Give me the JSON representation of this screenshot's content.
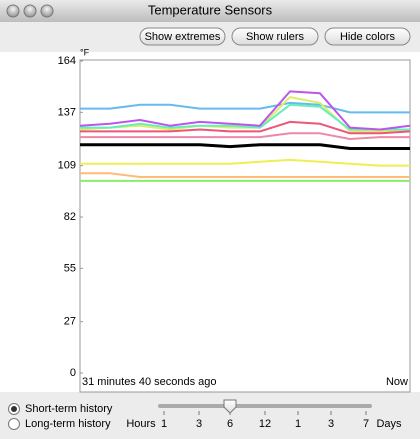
{
  "window_title": "Temperature Sensors",
  "buttons": [
    "Show extremes",
    "Show rulers",
    "Hide colors"
  ],
  "chart_data": {
    "type": "line",
    "y_label": "°F",
    "ylim": [
      0,
      164
    ],
    "yticks": [
      0,
      27,
      55,
      82,
      109,
      137,
      164
    ],
    "categories": [
      "31 minutes 40 seconds ago",
      null,
      null,
      null,
      null,
      null,
      null,
      null,
      null,
      null,
      null,
      "Now"
    ],
    "series": [
      {
        "color": "#66bbee",
        "values": [
          139,
          139,
          141,
          141,
          139,
          139,
          139,
          142,
          141,
          137,
          137,
          137
        ]
      },
      {
        "color": "#ddee66",
        "values": [
          128,
          129,
          130,
          128,
          130,
          129,
          129,
          145,
          142,
          127,
          127,
          127
        ]
      },
      {
        "color": "#66eebb",
        "values": [
          129,
          129,
          131,
          129,
          130,
          130,
          129,
          141,
          140,
          128,
          128,
          128
        ]
      },
      {
        "color": "#bb55ee",
        "values": [
          130,
          131,
          133,
          130,
          132,
          131,
          130,
          148,
          147,
          129,
          128,
          130
        ]
      },
      {
        "color": "#ee5577",
        "values": [
          127,
          127,
          127,
          127,
          128,
          127,
          127,
          132,
          131,
          126,
          126,
          127
        ]
      },
      {
        "color": "#ee88aa",
        "values": [
          124,
          124,
          124,
          124,
          124,
          124,
          124,
          126,
          126,
          123,
          124,
          124
        ]
      },
      {
        "color": "#000000",
        "values": [
          120,
          120,
          120,
          120,
          120,
          119,
          120,
          120,
          120,
          118,
          118,
          118
        ]
      },
      {
        "color": "#eeee55",
        "values": [
          110,
          110,
          110,
          110,
          110,
          110,
          111,
          112,
          111,
          110,
          109,
          109
        ]
      },
      {
        "color": "#ffbb77",
        "values": [
          105,
          105,
          103,
          103,
          103,
          103,
          103,
          103,
          103,
          103,
          103,
          103
        ]
      },
      {
        "color": "#88ee66",
        "values": [
          101,
          101,
          101,
          101,
          101,
          101,
          101,
          101,
          101,
          101,
          101,
          101
        ]
      }
    ]
  },
  "history_options": [
    {
      "label": "Short-term history",
      "selected": true
    },
    {
      "label": "Long-term history",
      "selected": false
    }
  ],
  "slider": {
    "start_label": "Hours",
    "ticks": [
      "1",
      "3",
      "6",
      "12",
      "1",
      "3",
      "7"
    ],
    "end_label": "Days",
    "selected": 2
  }
}
